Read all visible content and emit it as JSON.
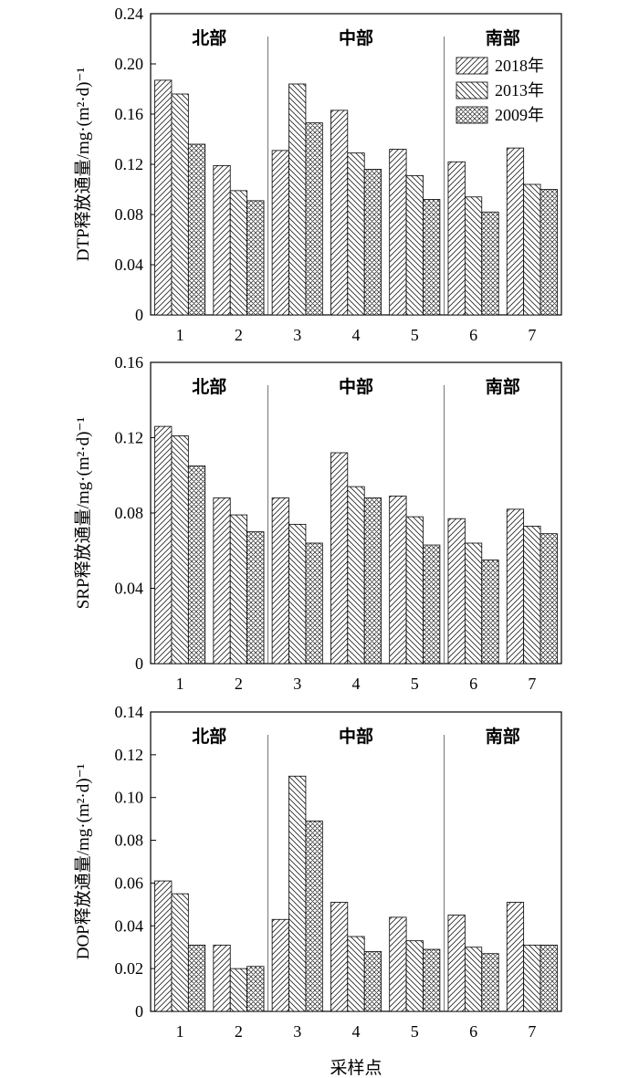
{
  "chart_data": [
    {
      "type": "bar",
      "ylabel": "DTP释放通量/mg·(m²·d)⁻¹",
      "xlabel": "",
      "categories": [
        "1",
        "2",
        "3",
        "4",
        "5",
        "6",
        "7"
      ],
      "ylim": [
        0,
        0.24
      ],
      "yticks": [
        "0",
        "0.04",
        "0.08",
        "0.12",
        "0.16",
        "0.20",
        "0.24"
      ],
      "regions": [
        "北部",
        "中部",
        "南部"
      ],
      "legend_position": "top-right",
      "series": [
        {
          "name": "2018年",
          "values": [
            0.187,
            0.119,
            0.131,
            0.163,
            0.132,
            0.122,
            0.133
          ]
        },
        {
          "name": "2013年",
          "values": [
            0.176,
            0.099,
            0.184,
            0.129,
            0.111,
            0.094,
            0.104
          ]
        },
        {
          "name": "2009年",
          "values": [
            0.136,
            0.091,
            0.153,
            0.116,
            0.092,
            0.082,
            0.1
          ]
        }
      ]
    },
    {
      "type": "bar",
      "ylabel": "SRP释放通量/mg·(m²·d)⁻¹",
      "xlabel": "",
      "categories": [
        "1",
        "2",
        "3",
        "4",
        "5",
        "6",
        "7"
      ],
      "ylim": [
        0,
        0.16
      ],
      "yticks": [
        "0",
        "0.04",
        "0.08",
        "0.12",
        "0.16"
      ],
      "regions": [
        "北部",
        "中部",
        "南部"
      ],
      "series": [
        {
          "name": "2018年",
          "values": [
            0.126,
            0.088,
            0.088,
            0.112,
            0.089,
            0.077,
            0.082
          ]
        },
        {
          "name": "2013年",
          "values": [
            0.121,
            0.079,
            0.074,
            0.094,
            0.078,
            0.064,
            0.073
          ]
        },
        {
          "name": "2009年",
          "values": [
            0.105,
            0.07,
            0.064,
            0.088,
            0.063,
            0.055,
            0.069
          ]
        }
      ]
    },
    {
      "type": "bar",
      "ylabel": "DOP释放通量/mg·(m²·d)⁻¹",
      "xlabel": "采样点",
      "categories": [
        "1",
        "2",
        "3",
        "4",
        "5",
        "6",
        "7"
      ],
      "ylim": [
        0,
        0.14
      ],
      "yticks": [
        "0",
        "0.02",
        "0.04",
        "0.06",
        "0.08",
        "0.10",
        "0.12",
        "0.14"
      ],
      "regions": [
        "北部",
        "中部",
        "南部"
      ],
      "series": [
        {
          "name": "2018年",
          "values": [
            0.061,
            0.031,
            0.043,
            0.051,
            0.044,
            0.045,
            0.051
          ]
        },
        {
          "name": "2013年",
          "values": [
            0.055,
            0.02,
            0.11,
            0.035,
            0.033,
            0.03,
            0.031
          ]
        },
        {
          "name": "2009年",
          "values": [
            0.031,
            0.021,
            0.089,
            0.028,
            0.029,
            0.027,
            0.031
          ]
        }
      ]
    }
  ]
}
